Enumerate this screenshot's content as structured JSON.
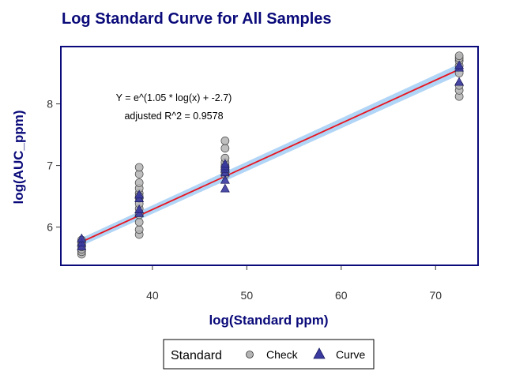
{
  "chart_data": {
    "type": "scatter",
    "title": "Log Standard Curve for All Samples",
    "xlabel": "log(Standard ppm)",
    "ylabel": "log(AUC_ppm)",
    "xlim": [
      30.3,
      74.5
    ],
    "ylim": [
      5.38,
      8.93
    ],
    "xticks": [
      40,
      50,
      60,
      70
    ],
    "yticks": [
      6,
      7,
      8
    ],
    "grid": false,
    "annotation": [
      "Y = e^(1.05 * log(x) + -2.7)",
      "adjusted R^2 = 0.9578"
    ],
    "fit": {
      "color": "#e8141e",
      "band_color": "#a8d0f5",
      "x": [
        32.5,
        72.5
      ],
      "y": [
        5.76,
        8.56
      ]
    },
    "legend": {
      "title": "Standard",
      "placement": "bottom",
      "entries": [
        "Check",
        "Curve"
      ]
    },
    "series": [
      {
        "name": "Check",
        "marker": "circle",
        "color": "#b4b4b4",
        "x": [
          32.5,
          32.5,
          32.5,
          32.5,
          32.5,
          32.5,
          32.5,
          38.6,
          38.6,
          38.6,
          38.6,
          38.6,
          38.6,
          38.6,
          38.6,
          38.6,
          38.6,
          38.6,
          38.6,
          38.6,
          47.7,
          47.7,
          47.7,
          47.7,
          47.7,
          47.7,
          47.7,
          47.7,
          72.5,
          72.5,
          72.5,
          72.5,
          72.5,
          72.5,
          72.5,
          72.5
        ],
        "y": [
          5.56,
          5.6,
          5.64,
          5.68,
          5.72,
          5.75,
          5.79,
          5.88,
          5.96,
          6.08,
          6.2,
          6.3,
          6.38,
          6.47,
          6.55,
          6.63,
          6.72,
          6.86,
          6.97,
          6.5,
          6.85,
          6.9,
          6.95,
          7.0,
          7.05,
          7.12,
          7.28,
          7.4,
          8.12,
          8.22,
          8.3,
          8.5,
          8.62,
          8.7,
          8.74,
          8.78
        ]
      },
      {
        "name": "Curve",
        "marker": "triangle",
        "color": "#3a3aa0",
        "x": [
          32.5,
          32.5,
          32.5,
          38.6,
          38.6,
          38.6,
          38.6,
          47.7,
          47.7,
          47.7,
          47.7,
          47.7,
          47.7,
          72.5,
          72.5,
          72.5
        ],
        "y": [
          5.68,
          5.74,
          5.81,
          6.22,
          6.28,
          6.46,
          6.52,
          6.62,
          6.76,
          6.88,
          6.94,
          6.98,
          7.02,
          8.35,
          8.58,
          8.62
        ]
      }
    ]
  }
}
